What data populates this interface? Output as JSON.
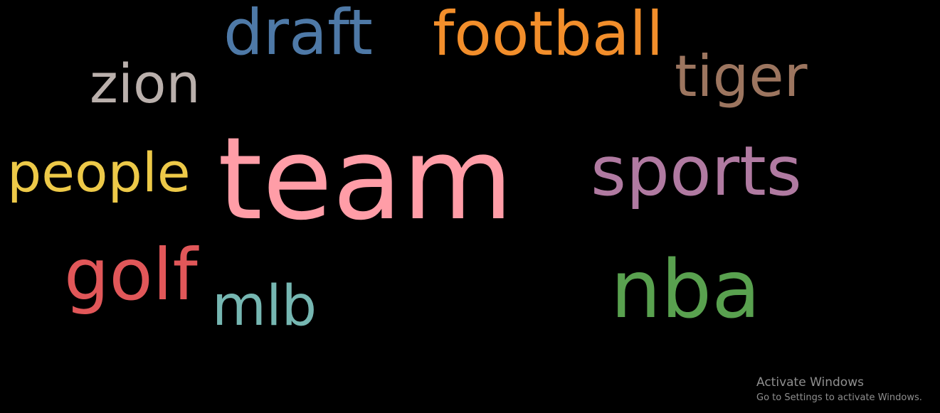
{
  "wordcloud": {
    "words": [
      {
        "text": "team",
        "color": "#ff9da7"
      },
      {
        "text": "draft",
        "color": "#4e79a7"
      },
      {
        "text": "football",
        "color": "#f28e2b"
      },
      {
        "text": "zion",
        "color": "#bab0ac"
      },
      {
        "text": "tiger",
        "color": "#9c755f"
      },
      {
        "text": "people",
        "color": "#edc948"
      },
      {
        "text": "sports",
        "color": "#b07aa1"
      },
      {
        "text": "golf",
        "color": "#e15759"
      },
      {
        "text": "mlb",
        "color": "#76b7b2"
      },
      {
        "text": "nba",
        "color": "#59a14f"
      }
    ]
  },
  "watermark": {
    "title": "Activate Windows",
    "subtitle": "Go to Settings to activate Windows."
  }
}
